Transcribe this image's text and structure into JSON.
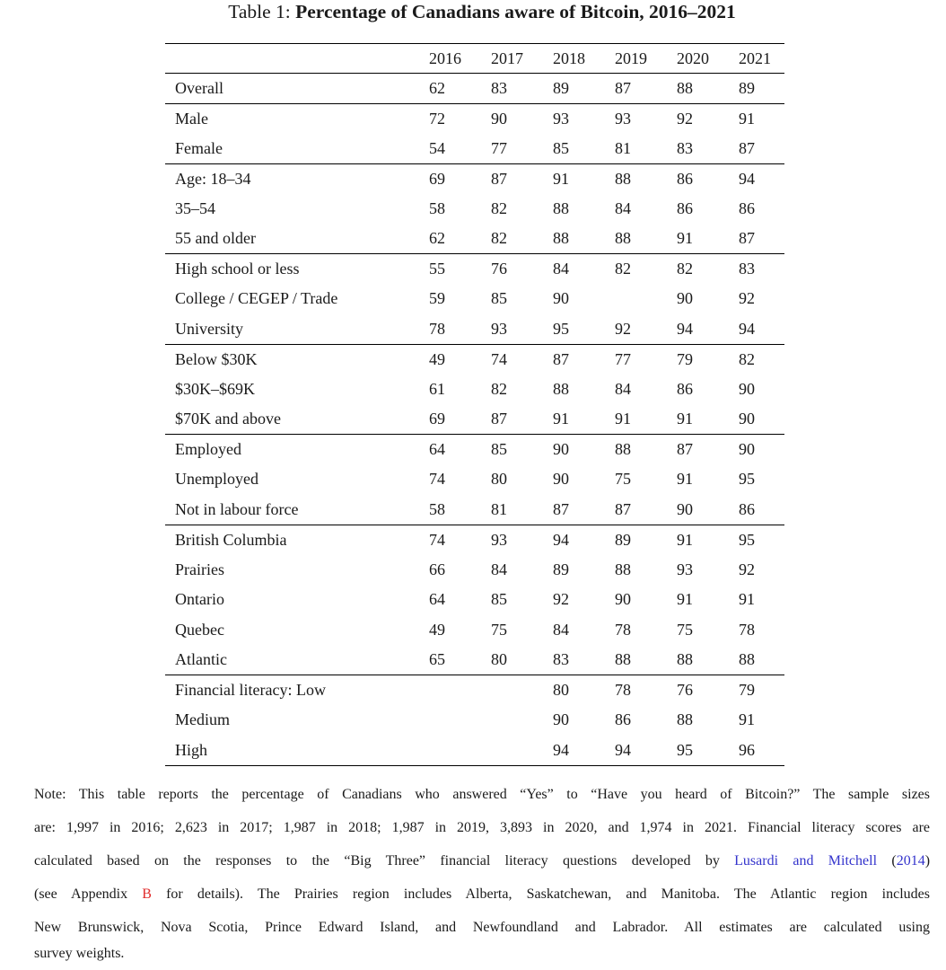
{
  "title": {
    "prefix": "Table 1: ",
    "main": "Percentage of Canadians aware of Bitcoin, 2016–2021"
  },
  "colors": {
    "cite": "#3333cc",
    "ref": "#e02b2b",
    "text": "#1a1a1a",
    "rule": "#000000"
  },
  "table": {
    "year_headers": [
      "2016",
      "2017",
      "2018",
      "2019",
      "2020",
      "2021"
    ],
    "groups": [
      {
        "rows": [
          {
            "label": "Overall",
            "values": [
              "62",
              "83",
              "89",
              "87",
              "88",
              "89"
            ]
          }
        ]
      },
      {
        "rows": [
          {
            "label": "Male",
            "values": [
              "72",
              "90",
              "93",
              "93",
              "92",
              "91"
            ]
          },
          {
            "label": "Female",
            "values": [
              "54",
              "77",
              "85",
              "81",
              "83",
              "87"
            ]
          }
        ]
      },
      {
        "rows": [
          {
            "label": "Age: 18–34",
            "values": [
              "69",
              "87",
              "91",
              "88",
              "86",
              "94"
            ]
          },
          {
            "label": "35–54",
            "values": [
              "58",
              "82",
              "88",
              "84",
              "86",
              "86"
            ]
          },
          {
            "label": "55 and older",
            "values": [
              "62",
              "82",
              "88",
              "88",
              "91",
              "87"
            ]
          }
        ]
      },
      {
        "rows": [
          {
            "label": "High school or less",
            "values": [
              "55",
              "76",
              "84",
              "82",
              "82",
              "83"
            ]
          },
          {
            "label": "College / CEGEP / Trade",
            "values": [
              "59",
              "85",
              "90",
              "",
              "90",
              "92"
            ]
          },
          {
            "label": "University",
            "values": [
              "78",
              "93",
              "95",
              "92",
              "94",
              "94"
            ]
          }
        ]
      },
      {
        "rows": [
          {
            "label": "Below $30K",
            "values": [
              "49",
              "74",
              "87",
              "77",
              "79",
              "82"
            ]
          },
          {
            "label": "$30K–$69K",
            "values": [
              "61",
              "82",
              "88",
              "84",
              "86",
              "90"
            ]
          },
          {
            "label": "$70K and above",
            "values": [
              "69",
              "87",
              "91",
              "91",
              "91",
              "90"
            ]
          }
        ]
      },
      {
        "rows": [
          {
            "label": "Employed",
            "values": [
              "64",
              "85",
              "90",
              "88",
              "87",
              "90"
            ]
          },
          {
            "label": "Unemployed",
            "values": [
              "74",
              "80",
              "90",
              "75",
              "91",
              "95"
            ]
          },
          {
            "label": "Not in labour force",
            "values": [
              "58",
              "81",
              "87",
              "87",
              "90",
              "86"
            ]
          }
        ]
      },
      {
        "rows": [
          {
            "label": "British Columbia",
            "values": [
              "74",
              "93",
              "94",
              "89",
              "91",
              "95"
            ]
          },
          {
            "label": "Prairies",
            "values": [
              "66",
              "84",
              "89",
              "88",
              "93",
              "92"
            ]
          },
          {
            "label": "Ontario",
            "values": [
              "64",
              "85",
              "92",
              "90",
              "91",
              "91"
            ]
          },
          {
            "label": "Quebec",
            "values": [
              "49",
              "75",
              "84",
              "78",
              "75",
              "78"
            ]
          },
          {
            "label": "Atlantic",
            "values": [
              "65",
              "80",
              "83",
              "88",
              "88",
              "88"
            ]
          }
        ]
      },
      {
        "rows": [
          {
            "label": "Financial literacy: Low",
            "values": [
              "",
              "",
              "80",
              "78",
              "76",
              "79"
            ]
          },
          {
            "label": "Medium",
            "values": [
              "",
              "",
              "90",
              "86",
              "88",
              "91"
            ]
          },
          {
            "label": "High",
            "values": [
              "",
              "",
              "94",
              "94",
              "95",
              "96"
            ]
          }
        ]
      }
    ]
  },
  "note": {
    "lines": [
      {
        "segments": [
          {
            "text": "Note: This table reports the percentage of Canadians who answered “Yes” to “Have you heard of Bitcoin?”  The sample sizes"
          }
        ]
      },
      {
        "segments": [
          {
            "text": "are: 1,997 in 2016; 2,623 in 2017; 1,987 in 2018; 1,987 in 2019, 3,893 in 2020, and 1,974 in 2021. Financial literacy scores are"
          }
        ]
      },
      {
        "segments": [
          {
            "text": "calculated based on the responses to the “Big Three” financial literacy questions developed by "
          },
          {
            "text": "Lusardi and Mitchell",
            "color": "cite",
            "link": true
          },
          {
            "text": " ("
          },
          {
            "text": "2014",
            "color": "cite",
            "link": true
          },
          {
            "text": ")"
          }
        ]
      },
      {
        "segments": [
          {
            "text": "(see Appendix "
          },
          {
            "text": "B",
            "color": "ref",
            "link": true
          },
          {
            "text": " for details). The Prairies region includes Alberta, Saskatchewan, and Manitoba. The Atlantic region includes"
          }
        ]
      },
      {
        "segments": [
          {
            "text": "New Brunswick, Nova Scotia, Prince Edward Island, and Newfoundland and Labrador. All estimates are calculated using"
          }
        ]
      },
      {
        "partial": true,
        "segments": [
          {
            "text": "survey weights."
          }
        ]
      }
    ]
  }
}
